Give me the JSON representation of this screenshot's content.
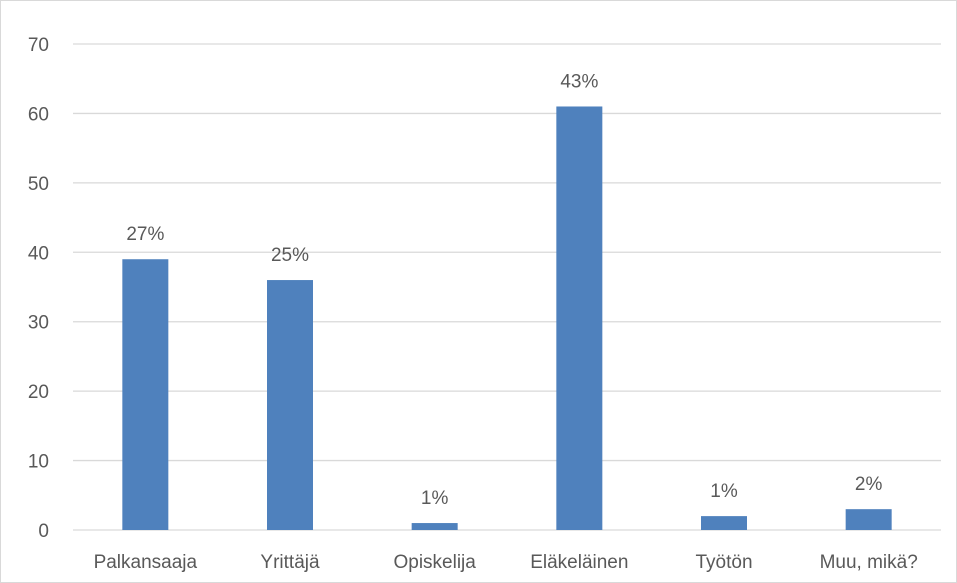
{
  "chart_data": {
    "type": "bar",
    "categories": [
      "Palkansaaja",
      "Yrittäjä",
      "Opiskelija",
      "Eläkeläinen",
      "Työtön",
      "Muu, mikä?"
    ],
    "values": [
      39,
      36,
      1,
      61,
      2,
      3
    ],
    "data_labels": [
      "27%",
      "25%",
      "1%",
      "43%",
      "1%",
      "2%"
    ],
    "title": "",
    "xlabel": "",
    "ylabel": "",
    "ylim": [
      0,
      70
    ],
    "yticks": [
      "0",
      "10",
      "20",
      "30",
      "40",
      "50",
      "60",
      "70"
    ],
    "grid": true,
    "legend": "none",
    "colors": {
      "bar": "#4f81bd",
      "grid": "#d9d9d9",
      "text": "#595959",
      "axis": "#d9d9d9"
    }
  }
}
